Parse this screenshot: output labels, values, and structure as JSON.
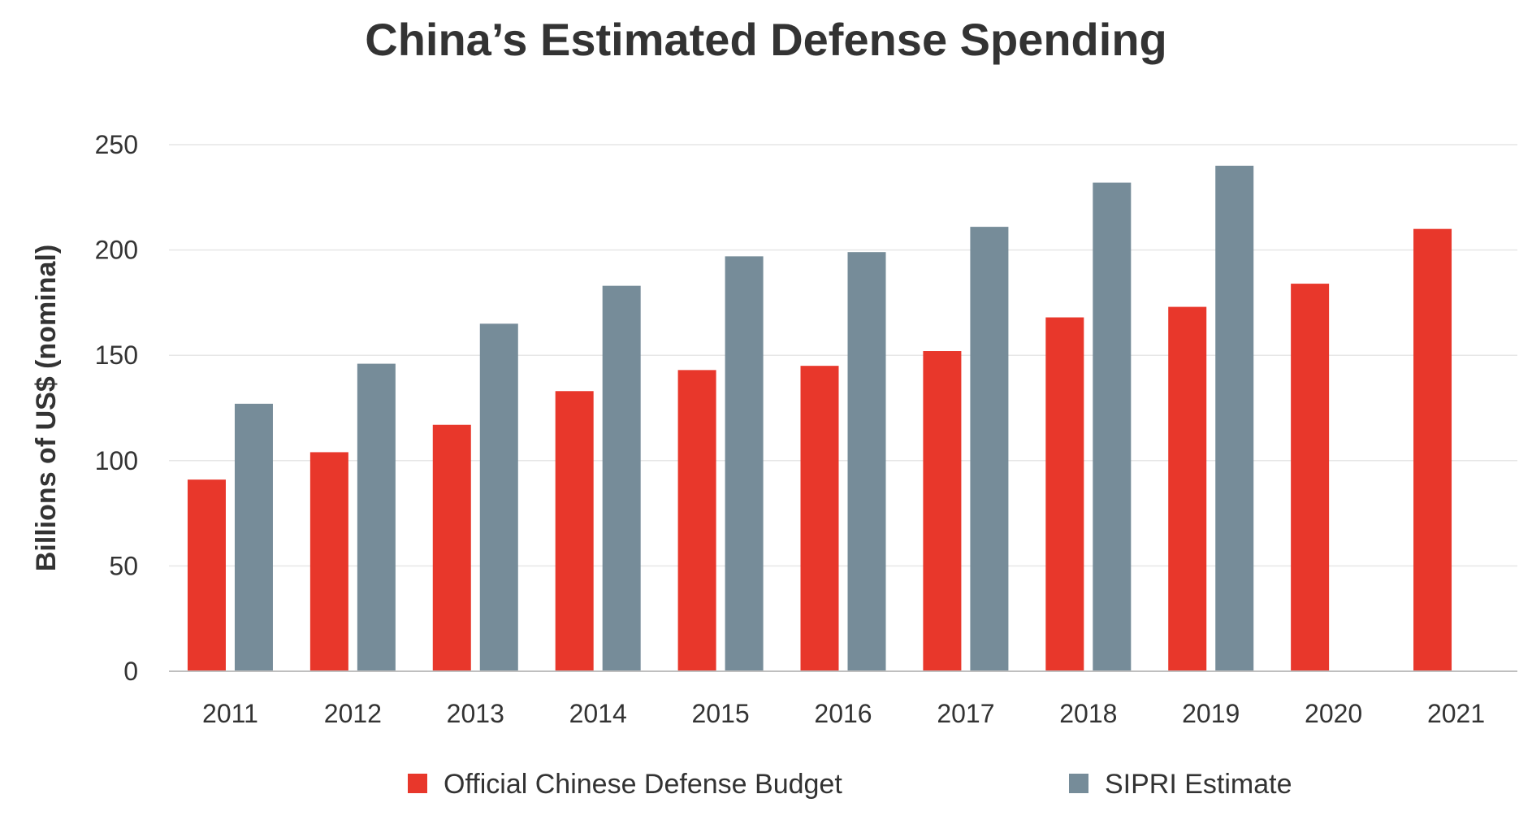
{
  "chart_data": {
    "type": "bar",
    "title": "China’s Estimated Defense Spending",
    "xlabel": "",
    "ylabel": "Billions of US$ (nominal)",
    "ylim": [
      0,
      250
    ],
    "yticks": [
      0,
      50,
      100,
      150,
      200,
      250
    ],
    "grid": true,
    "legend_position": "bottom",
    "categories": [
      "2011",
      "2012",
      "2013",
      "2014",
      "2015",
      "2016",
      "2017",
      "2018",
      "2019",
      "2020",
      "2021"
    ],
    "series": [
      {
        "name": "Official Chinese Defense Budget",
        "color": "#e8372b",
        "values": [
          91,
          104,
          117,
          133,
          143,
          145,
          152,
          168,
          173,
          184,
          210
        ]
      },
      {
        "name": "SIPRI Estimate",
        "color": "#768c99",
        "values": [
          127,
          146,
          165,
          183,
          197,
          199,
          211,
          232,
          240,
          null,
          null
        ]
      }
    ]
  }
}
